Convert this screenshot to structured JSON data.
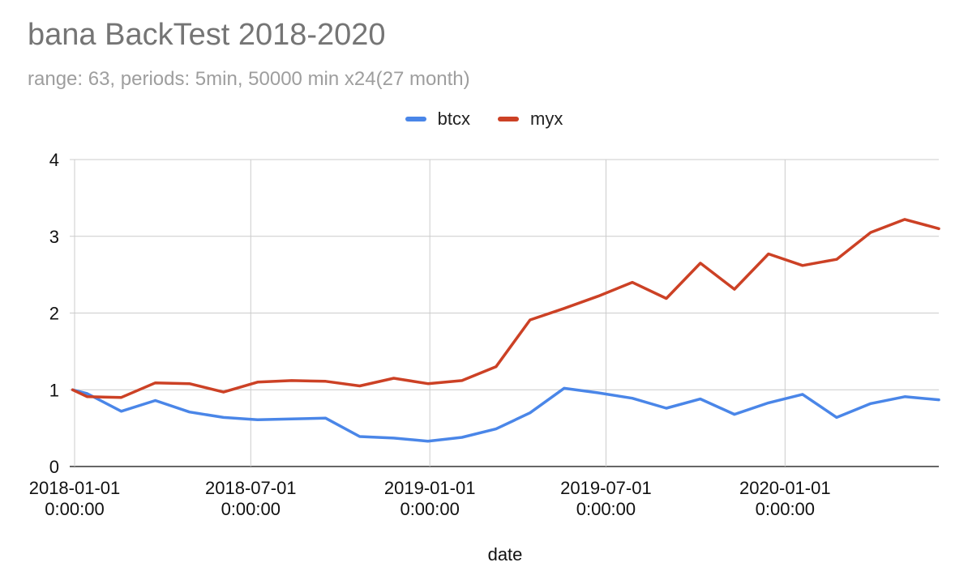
{
  "chart_data": {
    "type": "line",
    "title": "bana BackTest 2018-2020",
    "subtitle": "range: 63, periods: 5min, 50000 min x24(27 month)",
    "xlabel": "date",
    "ylabel": "",
    "ylim": [
      0,
      4
    ],
    "y_ticks": [
      "0",
      "1",
      "2",
      "3",
      "4"
    ],
    "x_ticks": [
      {
        "line1": "2018-01-01",
        "line2": "0:00:00"
      },
      {
        "line1": "2018-07-01",
        "line2": "0:00:00"
      },
      {
        "line1": "2019-01-01",
        "line2": "0:00:00"
      },
      {
        "line1": "2019-07-01",
        "line2": "0:00:00"
      },
      {
        "line1": "2020-01-01",
        "line2": "0:00:00"
      }
    ],
    "grid": true,
    "legend_position": "top",
    "x": [
      "2017-12-30",
      "2018-01-14",
      "2018-02-18",
      "2018-03-25",
      "2018-04-29",
      "2018-06-03",
      "2018-07-08",
      "2018-08-12",
      "2018-09-16",
      "2018-10-21",
      "2018-11-25",
      "2018-12-30",
      "2019-02-03",
      "2019-03-10",
      "2019-04-14",
      "2019-05-19",
      "2019-06-23",
      "2019-07-28",
      "2019-09-01",
      "2019-10-06",
      "2019-11-10",
      "2019-12-15",
      "2020-01-19",
      "2020-02-23",
      "2020-03-29",
      "2020-05-03",
      "2020-06-07"
    ],
    "series": [
      {
        "name": "btcx",
        "color": "#4a86e8",
        "values": [
          1.0,
          0.95,
          0.72,
          0.86,
          0.71,
          0.64,
          0.61,
          0.62,
          0.63,
          0.39,
          0.37,
          0.33,
          0.38,
          0.49,
          0.7,
          1.02,
          0.96,
          0.89,
          0.76,
          0.88,
          0.68,
          0.83,
          0.94,
          0.64,
          0.82,
          0.91,
          0.87
        ]
      },
      {
        "name": "myx",
        "color": "#cc4125",
        "values": [
          1.0,
          0.91,
          0.9,
          1.09,
          1.08,
          0.97,
          1.1,
          1.12,
          1.11,
          1.05,
          1.15,
          1.08,
          1.12,
          1.3,
          1.91,
          2.06,
          2.22,
          2.4,
          2.19,
          2.65,
          2.31,
          2.77,
          2.62,
          2.7,
          3.05,
          3.22,
          3.1
        ]
      }
    ]
  }
}
